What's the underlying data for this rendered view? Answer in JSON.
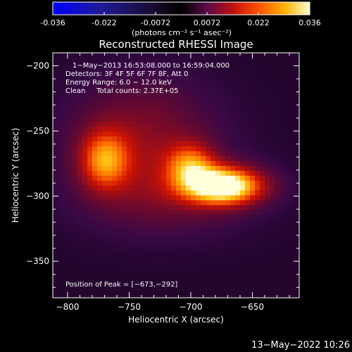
{
  "colorbar": {
    "ticks": [
      "-0.036",
      "-0.022",
      "-0.0072",
      "0.0072",
      "0.022",
      "0.036"
    ],
    "units": "(photons cm⁻² s⁻¹ asec⁻²)",
    "range": [
      -0.036,
      0.036
    ]
  },
  "chart_data": {
    "type": "heatmap",
    "title": "Reconstructed RHESSI Image",
    "xlabel": "Heliocentric X (arcsec)",
    "ylabel": "Heliocentric Y (arcsec)",
    "xlim": [
      -812,
      -612
    ],
    "ylim": [
      -378,
      -190
    ],
    "xticks": [
      -800,
      -750,
      -700,
      -650
    ],
    "yticks": [
      -200,
      -250,
      -300,
      -350
    ],
    "xtick_labels": [
      "−800",
      "−750",
      "−700",
      "−650"
    ],
    "ytick_labels": [
      "−200",
      "−250",
      "−300",
      "−350"
    ],
    "annotations": [
      "1−May−2013 16:53:08.000 to 16:59:04.000",
      "Detectors: 3F 4F 5F 6F 7F 8F, Att 0",
      "Energy Range: 6.0 − 12.0 keV",
      "Clean     Total counts: 2.37E+05"
    ],
    "peak_label": "Position of Peak = [−673,−292]",
    "peak": [
      -673,
      -292
    ],
    "sources": [
      {
        "x": -673,
        "y": -292,
        "sx": 22,
        "sy": 10,
        "amp": 0.036
      },
      {
        "x": -700,
        "y": -276,
        "sx": 14,
        "sy": 12,
        "amp": 0.018
      },
      {
        "x": -770,
        "y": -272,
        "sx": 14,
        "sy": 16,
        "amp": 0.02
      },
      {
        "x": -740,
        "y": -255,
        "sx": 40,
        "sy": 30,
        "amp": 0.01
      },
      {
        "x": -720,
        "y": -300,
        "sx": 45,
        "sy": 20,
        "amp": 0.007
      }
    ]
  },
  "footer": {
    "timestamp": "13−May−2022 10:26"
  }
}
